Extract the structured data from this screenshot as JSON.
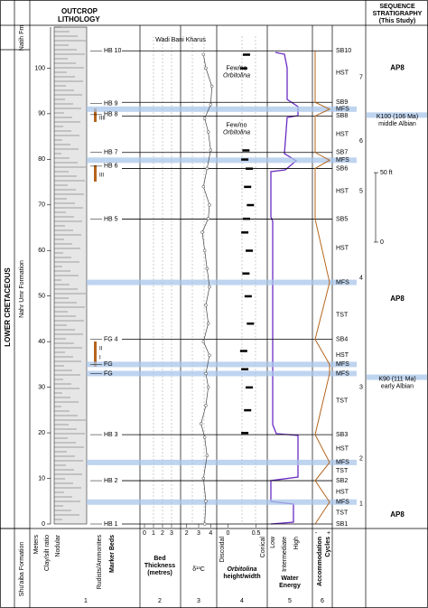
{
  "header": {
    "lithology": [
      "OUTCROP",
      "LITHOLOGY"
    ],
    "stratigraphy": [
      "SEQUENCE",
      "STRATIGRAPHY",
      "(This Study)"
    ]
  },
  "side_labels": {
    "era": "LOWER CRETACEOUS",
    "formation": "Nahr Umr Formation",
    "top_formation": "Natih Fm",
    "bottom_formation": "Shu'aiba Formation"
  },
  "location": "Wadi Bani Kharus",
  "depth_axis": {
    "ylim": [
      0,
      109
    ],
    "yticks": [
      0,
      10,
      20,
      30,
      40,
      50,
      60,
      70,
      80,
      90,
      100
    ]
  },
  "feet_scale": {
    "ticks": [
      0,
      {
        "value": 50,
        "label": "50 ft"
      }
    ]
  },
  "left_markers": [
    {
      "label": "HB 10",
      "depth": 103.8
    },
    {
      "label": "HB 9",
      "depth": 92.2
    },
    {
      "label": "HB 8",
      "depth": 89.8
    },
    {
      "label": "HB 7",
      "depth": 81.5
    },
    {
      "label": "HB 6",
      "depth": 78.5
    },
    {
      "label": "HB 5",
      "depth": 66.9
    },
    {
      "label": "FG 4",
      "depth": 40.5
    },
    {
      "label": "FG",
      "depth": 35
    },
    {
      "label": "FG",
      "depth": 33
    },
    {
      "label": "HB 3",
      "depth": 19.6
    },
    {
      "label": "HB 2",
      "depth": 9.5
    },
    {
      "label": "HB 1",
      "depth": 0
    }
  ],
  "marker_bed_labels": [
    {
      "label": "IIII",
      "depth": 89
    },
    {
      "label": "III",
      "depth": 76.5
    },
    {
      "label": "II",
      "depth": 38.5
    },
    {
      "label": "I",
      "depth": 36.5
    }
  ],
  "surfaces": [
    {
      "label": "SB10",
      "depth": 103.8
    },
    {
      "label": "SB9",
      "depth": 92.5
    },
    {
      "label": "MFS",
      "depth": 91
    },
    {
      "label": "SB8",
      "depth": 89.5
    },
    {
      "label": "SB7",
      "depth": 81.5
    },
    {
      "label": "MFS",
      "depth": 79.8
    },
    {
      "label": "SB6",
      "depth": 78
    },
    {
      "label": "SB5",
      "depth": 66.9
    },
    {
      "label": "MFS",
      "depth": 53
    },
    {
      "label": "SB4",
      "depth": 40.5
    },
    {
      "label": "MFS",
      "depth": 35
    },
    {
      "label": "MFS",
      "depth": 33
    },
    {
      "label": "SB3",
      "depth": 19.6
    },
    {
      "label": "MFS",
      "depth": 13.5
    },
    {
      "label": "SB2",
      "depth": 9.5
    },
    {
      "label": "MFS",
      "depth": 4.8
    },
    {
      "label": "SB1",
      "depth": 0
    }
  ],
  "tracts": [
    {
      "label": "HST",
      "depth": 99
    },
    {
      "label": "HST",
      "depth": 85.5
    },
    {
      "label": "HST",
      "depth": 73
    },
    {
      "label": "HST",
      "depth": 60.5
    },
    {
      "label": "TST",
      "depth": 45.8
    },
    {
      "label": "HST",
      "depth": 37
    },
    {
      "label": "TST",
      "depth": 27
    },
    {
      "label": "HST",
      "depth": 16.5
    },
    {
      "label": "TST",
      "depth": 11.7
    },
    {
      "label": "HST",
      "depth": 7
    },
    {
      "label": "TST",
      "depth": 2.4
    }
  ],
  "sequences": [
    {
      "label": "7",
      "depth": 98
    },
    {
      "label": "6",
      "depth": 84
    },
    {
      "label": "5",
      "depth": 73
    },
    {
      "label": "4",
      "depth": 54
    },
    {
      "label": "3",
      "depth": 30
    },
    {
      "label": "2",
      "depth": 14.3
    },
    {
      "label": "1",
      "depth": 4.4
    }
  ],
  "supersequences": [
    {
      "label": "AP8",
      "depth": 100
    },
    {
      "label": "AP8",
      "depth": 49.4
    },
    {
      "label": "AP8",
      "depth": 2
    }
  ],
  "boundaries": [
    {
      "lines": [
        "K100 (106 Ma)",
        "middle Albian"
      ],
      "depth": 89.5
    },
    {
      "lines": [
        "K90 (111 Ma)",
        "early Albian"
      ],
      "depth": 32
    }
  ],
  "orbitolina_notes": [
    {
      "lines": [
        "Few/no",
        "Orbitolina"
      ],
      "depth": 100
    },
    {
      "lines": [
        "Few/no",
        "Orbitolina"
      ],
      "depth": 87.5
    }
  ],
  "d13c": {
    "xlim": [
      1.5,
      4.5
    ],
    "xticks": [
      2,
      3,
      4
    ],
    "depth": [
      0,
      5,
      10,
      15,
      19,
      22,
      26,
      30,
      33,
      37,
      40,
      44,
      48,
      52,
      56,
      60,
      64,
      67,
      70,
      74,
      78,
      82,
      86,
      89,
      92,
      96,
      100,
      103
    ],
    "values": [
      3.5,
      3.6,
      3.4,
      3.7,
      3.5,
      3.2,
      3.6,
      3.8,
      3.6,
      3.9,
      3.4,
      3.8,
      3.6,
      3.9,
      3.7,
      3.5,
      3.3,
      3.8,
      3.9,
      3.4,
      3.7,
      4.0,
      3.8,
      3.5,
      4.0,
      4.1,
      3.6,
      3.4
    ]
  },
  "orbitolina": {
    "xlim": [
      -0.2,
      0.7
    ],
    "xticks": [
      0,
      0.5
    ],
    "depth": [
      20,
      25,
      30,
      34,
      38,
      44,
      50,
      55,
      60,
      64,
      67,
      70,
      74,
      78,
      80,
      82,
      100,
      103
    ],
    "values": [
      0.3,
      0.35,
      0.38,
      0.3,
      0.28,
      0.4,
      0.36,
      0.32,
      0.38,
      0.3,
      0.33,
      0.4,
      0.35,
      0.38,
      0.3,
      0.32,
      0.28,
      0.33
    ]
  },
  "bed_thickness_ticks": [
    0,
    1,
    2,
    3
  ],
  "accommodation_ticks": [
    "-",
    "+"
  ],
  "columns": [
    {
      "labels": [
        "Meters",
        "Clay/silt ratio",
        "Nodular",
        "Rudists/Ammonites",
        "Marker Beds"
      ],
      "number": "1"
    },
    {
      "labels": [
        "Bed",
        "Thickness",
        "(metres)"
      ],
      "number": "2"
    },
    {
      "labels": [
        "δ¹³C"
      ],
      "number": "3"
    },
    {
      "labels": [
        "Discoidal",
        "Conical",
        "Orbitolina",
        "height/width"
      ],
      "number": "4"
    },
    {
      "labels": [
        "Low",
        "Intermediate",
        "High",
        "Water",
        "Energy"
      ],
      "number": "5"
    },
    {
      "labels": [
        "Accommodation",
        "Cycles"
      ],
      "number": "6"
    }
  ]
}
